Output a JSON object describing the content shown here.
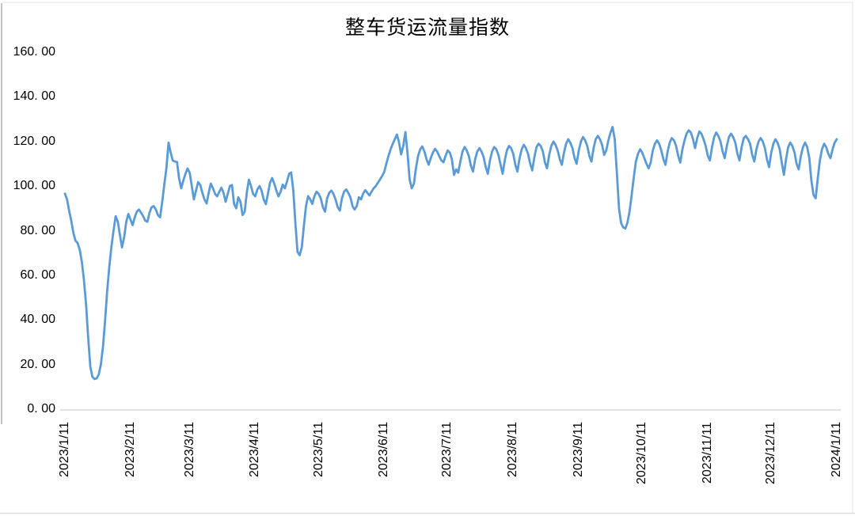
{
  "colors": {
    "line": "#5B9BD5",
    "axis": "#D9D9D9",
    "text": "#000000",
    "border_left": "#A9A9A9",
    "border_light": "#E3E3E3",
    "border_bottom": "#DCDCDC"
  },
  "chart_data": {
    "type": "line",
    "title": "整车货运流量指数",
    "xlabel": "",
    "ylabel": "",
    "grid": false,
    "legend": "none",
    "y_min": 0,
    "y_max": 160,
    "y_step": 20,
    "y_tick_values": [
      0,
      20,
      40,
      60,
      80,
      100,
      120,
      140,
      160
    ],
    "y_tick_labels": [
      "0. 00",
      "20. 00",
      "40. 00",
      "60. 00",
      "80. 00",
      "100. 00",
      "120. 00",
      "140. 00",
      "160. 00"
    ],
    "x_start": "2023/1/11",
    "x_end": "2024/1/11",
    "x_tick_labels": [
      "2023/1/11",
      "2023/2/11",
      "2023/3/11",
      "2023/4/11",
      "2023/5/11",
      "2023/6/11",
      "2023/7/11",
      "2023/8/11",
      "2023/9/11",
      "2023/10/11",
      "2023/11/11",
      "2023/12/11",
      "2024/1/11"
    ],
    "x_tick_day_index": [
      0,
      31,
      59,
      90,
      120,
      151,
      181,
      212,
      243,
      273,
      304,
      334,
      365
    ],
    "values": [
      96.6,
      94.0,
      89.0,
      84.5,
      79.0,
      75.5,
      74.5,
      71.5,
      66.0,
      58.0,
      47.0,
      32.0,
      19.0,
      14.5,
      13.5,
      13.8,
      15.5,
      20.0,
      28.0,
      40.0,
      53.0,
      64.0,
      73.0,
      80.0,
      86.5,
      84.0,
      78.0,
      72.5,
      77.0,
      84.0,
      87.5,
      85.0,
      82.5,
      86.0,
      88.5,
      89.5,
      88.0,
      86.5,
      84.5,
      84.0,
      88.0,
      90.5,
      91.0,
      89.5,
      87.0,
      86.0,
      93.0,
      100.5,
      108.0,
      119.5,
      115.0,
      111.5,
      111.0,
      110.8,
      103.5,
      99.0,
      102.5,
      105.5,
      107.9,
      106.0,
      100.0,
      94.0,
      98.0,
      101.8,
      100.5,
      97.0,
      94.0,
      92.2,
      97.0,
      101.1,
      99.0,
      96.5,
      95.4,
      97.5,
      99.3,
      97.0,
      93.0,
      96.5,
      100.0,
      100.5,
      92.0,
      90.0,
      95.0,
      93.0,
      87.0,
      88.5,
      97.0,
      102.9,
      100.0,
      96.5,
      95.4,
      98.5,
      100.0,
      98.0,
      94.0,
      91.9,
      96.5,
      101.5,
      103.6,
      101.0,
      98.0,
      95.4,
      97.5,
      100.7,
      99.0,
      102.0,
      105.5,
      106.1,
      98.0,
      83.0,
      70.5,
      69.0,
      72.5,
      82.0,
      91.0,
      95.5,
      94.0,
      92.0,
      95.5,
      97.5,
      96.5,
      94.5,
      90.5,
      88.5,
      94.5,
      97.0,
      98.0,
      96.5,
      94.0,
      90.5,
      89.0,
      94.5,
      97.5,
      98.5,
      97.0,
      95.0,
      91.0,
      89.5,
      91.0,
      95.0,
      94.0,
      96.5,
      98.2,
      97.0,
      95.8,
      97.5,
      99.0,
      100.0,
      101.5,
      103.0,
      104.5,
      106.4,
      110.0,
      113.5,
      116.5,
      118.9,
      121.0,
      123.1,
      119.5,
      114.2,
      118.0,
      124.2,
      115.0,
      103.0,
      99.0,
      101.0,
      108.0,
      113.5,
      116.5,
      117.8,
      115.5,
      112.0,
      109.6,
      112.5,
      115.0,
      116.7,
      115.5,
      113.5,
      111.5,
      110.7,
      113.5,
      116.0,
      115.0,
      112.0,
      105.0,
      107.5,
      106.0,
      111.0,
      115.5,
      117.5,
      116.0,
      113.5,
      109.0,
      106.5,
      112.0,
      115.5,
      117.0,
      115.5,
      113.0,
      108.5,
      105.5,
      111.5,
      115.5,
      117.5,
      116.5,
      114.0,
      109.5,
      105.5,
      111.5,
      116.0,
      118.0,
      117.0,
      114.5,
      109.5,
      106.5,
      112.5,
      116.5,
      118.5,
      117.0,
      114.5,
      110.0,
      107.0,
      113.0,
      117.5,
      119.0,
      118.0,
      115.5,
      110.5,
      108.0,
      114.0,
      118.0,
      120.0,
      118.5,
      116.0,
      112.0,
      109.5,
      115.0,
      119.0,
      121.0,
      119.5,
      117.0,
      112.5,
      110.0,
      116.0,
      120.0,
      122.0,
      120.5,
      118.0,
      113.5,
      111.0,
      117.0,
      121.0,
      122.5,
      121.0,
      118.5,
      114.0,
      116.0,
      120.5,
      124.0,
      126.5,
      121.0,
      106.0,
      90.0,
      83.5,
      81.5,
      81.0,
      83.5,
      88.5,
      96.0,
      104.0,
      111.0,
      114.5,
      116.5,
      115.0,
      112.5,
      110.0,
      108.0,
      110.5,
      116.0,
      119.0,
      120.5,
      119.0,
      116.0,
      112.0,
      109.5,
      115.5,
      119.5,
      121.5,
      120.5,
      118.0,
      113.5,
      110.5,
      116.5,
      120.5,
      123.5,
      125.0,
      124.0,
      121.0,
      117.0,
      121.5,
      124.5,
      123.5,
      121.0,
      118.0,
      113.5,
      111.5,
      117.5,
      122.0,
      124.0,
      122.5,
      120.0,
      115.5,
      112.5,
      118.0,
      122.0,
      123.5,
      122.0,
      119.5,
      114.5,
      111.5,
      117.5,
      121.5,
      122.5,
      121.0,
      119.0,
      114.0,
      111.0,
      116.5,
      120.0,
      121.5,
      120.0,
      117.0,
      112.0,
      108.5,
      115.0,
      119.0,
      121.0,
      119.5,
      116.5,
      110.5,
      105.0,
      112.0,
      117.5,
      119.5,
      118.0,
      115.0,
      110.0,
      107.5,
      113.5,
      117.5,
      119.5,
      117.5,
      112.5,
      102.5,
      96.0,
      94.5,
      103.5,
      111.5,
      116.5,
      119.0,
      117.5,
      114.5,
      112.5,
      116.5,
      119.5,
      121.0
    ]
  }
}
